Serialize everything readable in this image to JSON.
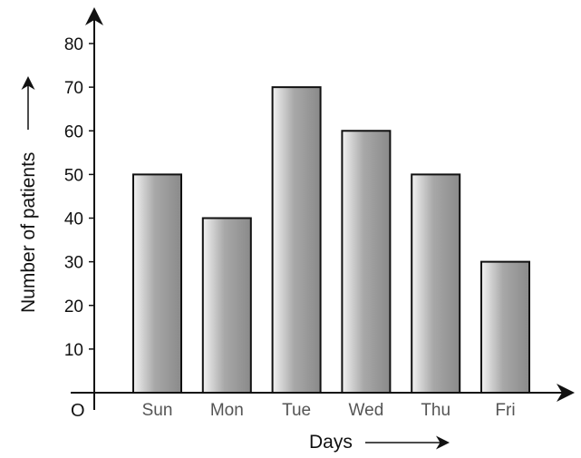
{
  "chart_data": {
    "type": "bar",
    "categories": [
      "Sun",
      "Mon",
      "Tue",
      "Wed",
      "Thu",
      "Fri"
    ],
    "values": [
      50,
      40,
      70,
      60,
      50,
      30
    ],
    "yticks": [
      10,
      20,
      30,
      40,
      50,
      60,
      70,
      80
    ],
    "ylim": [
      0,
      80
    ],
    "xlabel": "Days",
    "ylabel": "Number of patients",
    "origin_label": "O",
    "grid": false,
    "legend": "none",
    "colors": {
      "bar_dark": "#8a8a8a",
      "bar_light": "#f2f2f2",
      "bar_stroke": "#111111",
      "axis": "#111111"
    }
  }
}
